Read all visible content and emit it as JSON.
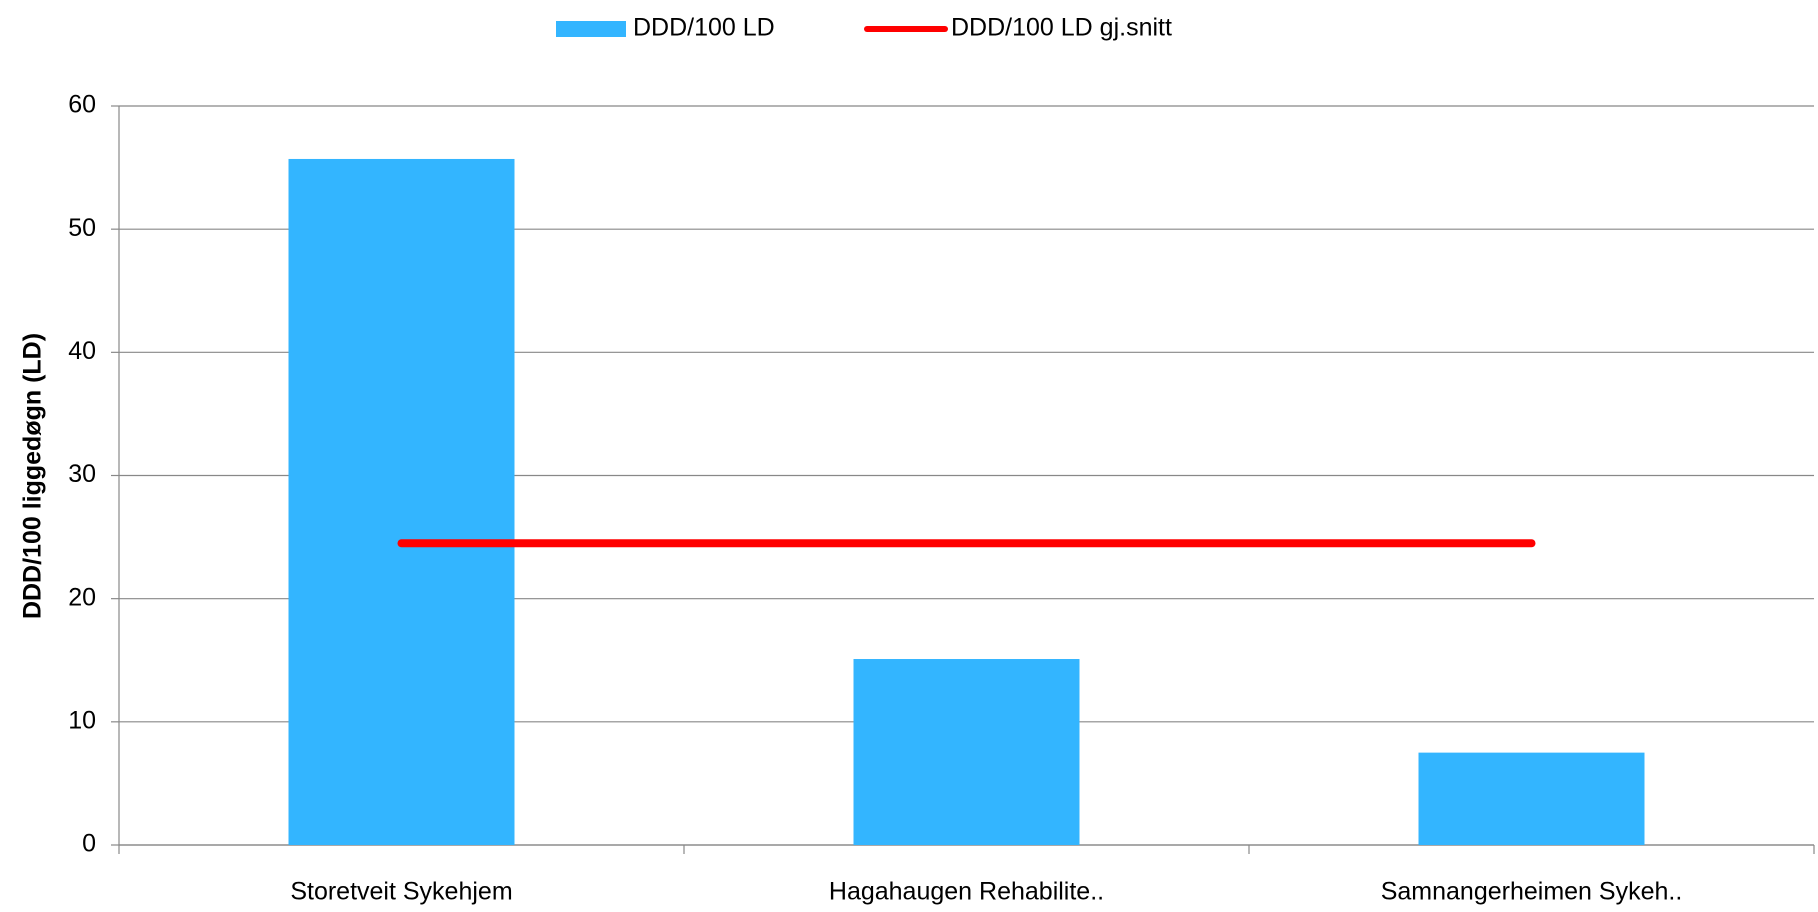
{
  "chart_data": {
    "type": "bar",
    "y_label": "DDD/100 liggedøgn (LD)",
    "categories": [
      "Storetveit Sykehjem",
      "Hagahaugen Rehabilite..",
      "Samnangerheimen Sykeh.."
    ],
    "series": [
      {
        "name": "DDD/100 LD",
        "type": "bar",
        "color": "#33b5ff",
        "values": [
          55.7,
          15.1,
          7.5
        ]
      },
      {
        "name": "DDD/100 LD gj.snitt",
        "type": "line",
        "color": "#ff0000",
        "values": [
          24.5,
          24.5,
          24.5
        ]
      }
    ],
    "ylim": [
      0,
      60
    ],
    "yticks": [
      0,
      10,
      20,
      30,
      40,
      50,
      60
    ],
    "grid": true
  }
}
